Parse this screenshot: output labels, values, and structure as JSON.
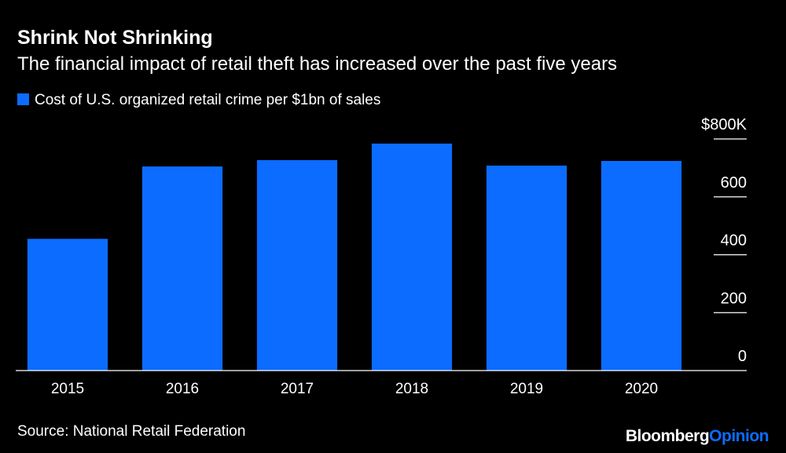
{
  "chart_data": {
    "type": "bar",
    "title": "Shrink Not Shrinking",
    "subtitle": "The financial impact of retail theft has increased over the past five years",
    "series_name": "Cost of U.S. organized retail crime per $1bn of sales",
    "categories": [
      "2015",
      "2016",
      "2017",
      "2018",
      "2019",
      "2020"
    ],
    "values": [
      455000,
      705000,
      727000,
      784000,
      708000,
      724000
    ],
    "color": "#0b6cff",
    "ylim": [
      0,
      800000
    ],
    "yticks": [
      0,
      {
        "value": 200000,
        "label": "200"
      },
      {
        "value": 400000,
        "label": "400"
      },
      {
        "value": 600000,
        "label": "600"
      },
      {
        "value": 800000,
        "label": "$800K"
      }
    ],
    "source": "Source: National Retail Federation"
  },
  "branding": {
    "name": "Bloomberg",
    "suffix": "Opinion"
  }
}
